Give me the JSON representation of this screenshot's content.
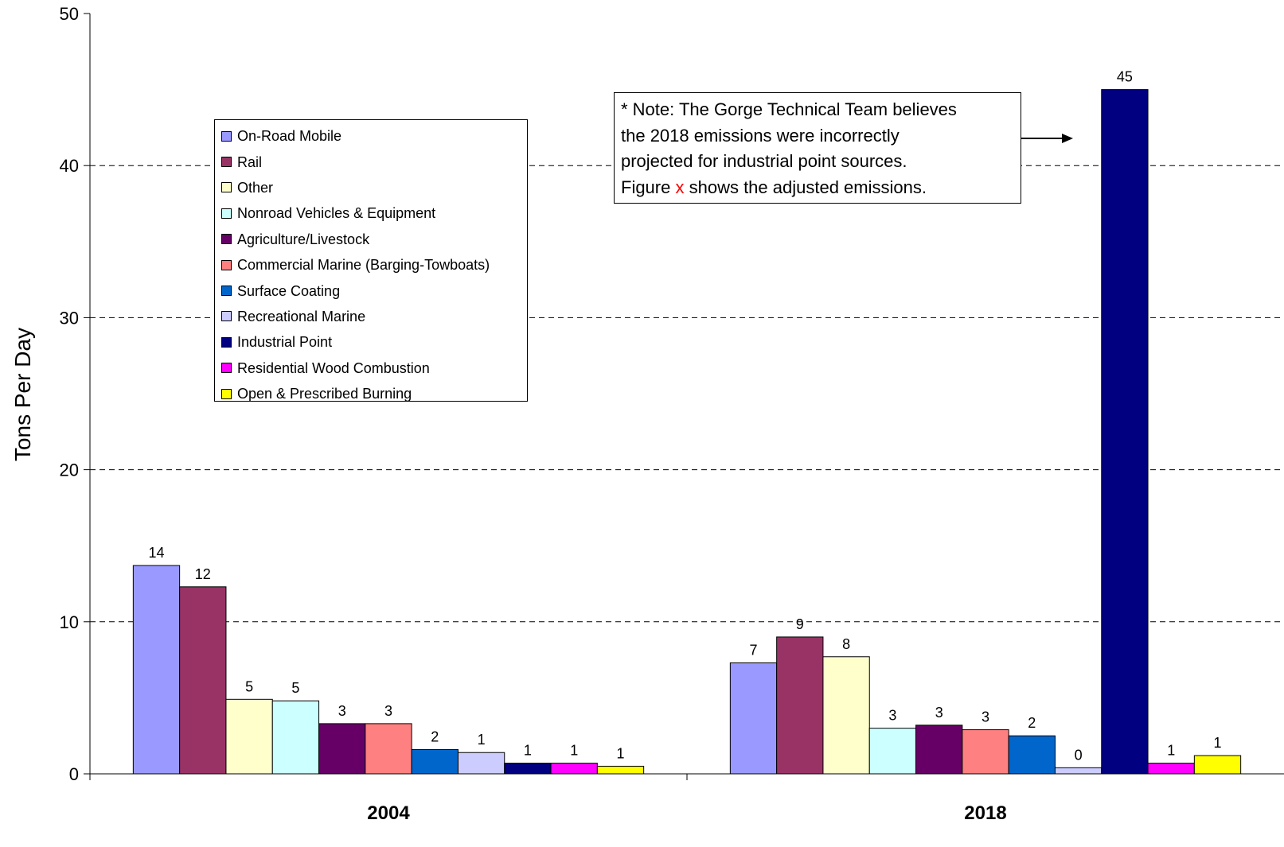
{
  "chart_data": {
    "type": "bar",
    "ylabel": "Tons Per Day",
    "ylim": [
      0,
      50
    ],
    "yticks": [
      0,
      10,
      20,
      30,
      40,
      50
    ],
    "grid": "horizontal dashed",
    "legend_position": "upper-left",
    "categories": [
      "2004",
      "2018"
    ],
    "series": [
      {
        "name": "On-Road Mobile",
        "color": "#9999FF",
        "values": [
          13.7,
          7.3
        ],
        "labels": [
          "14",
          "7"
        ]
      },
      {
        "name": "Rail",
        "color": "#993366",
        "values": [
          12.3,
          9.0
        ],
        "labels": [
          "12",
          "9"
        ]
      },
      {
        "name": "Other",
        "color": "#FFFFCC",
        "values": [
          4.9,
          7.7
        ],
        "labels": [
          "5",
          "8"
        ]
      },
      {
        "name": "Nonroad Vehicles & Equipment",
        "color": "#CCFFFF",
        "values": [
          4.8,
          3.0
        ],
        "labels": [
          "5",
          "3"
        ]
      },
      {
        "name": "Agriculture/Livestock",
        "color": "#660066",
        "values": [
          3.3,
          3.2
        ],
        "labels": [
          "3",
          "3"
        ]
      },
      {
        "name": "Commercial Marine (Barging-Towboats)",
        "color": "#FF8080",
        "values": [
          3.3,
          2.9
        ],
        "labels": [
          "3",
          "3"
        ]
      },
      {
        "name": "Surface Coating",
        "color": "#0066CC",
        "values": [
          1.6,
          2.5
        ],
        "labels": [
          "2",
          "2"
        ]
      },
      {
        "name": "Recreational Marine",
        "color": "#CCCCFF",
        "values": [
          1.4,
          0.4
        ],
        "labels": [
          "1",
          "0"
        ]
      },
      {
        "name": "Industrial Point",
        "color": "#000080",
        "values": [
          0.7,
          45.0
        ],
        "labels": [
          "1",
          "45"
        ]
      },
      {
        "name": "Residential Wood Combustion",
        "color": "#FF00FF",
        "values": [
          0.7,
          0.7
        ],
        "labels": [
          "1",
          "1"
        ]
      },
      {
        "name": "Open & Prescribed Burning",
        "color": "#FFFF00",
        "values": [
          0.5,
          1.2
        ],
        "labels": [
          "1",
          "1"
        ]
      }
    ]
  },
  "note": {
    "line1": "* Note: The Gorge Technical Team believes",
    "line2": "the 2018 emissions were incorrectly",
    "line3": "projected for industrial point sources.",
    "line4_prefix": "Figure ",
    "line4_marker": "x",
    "line4_suffix": " shows the adjusted emissions."
  }
}
